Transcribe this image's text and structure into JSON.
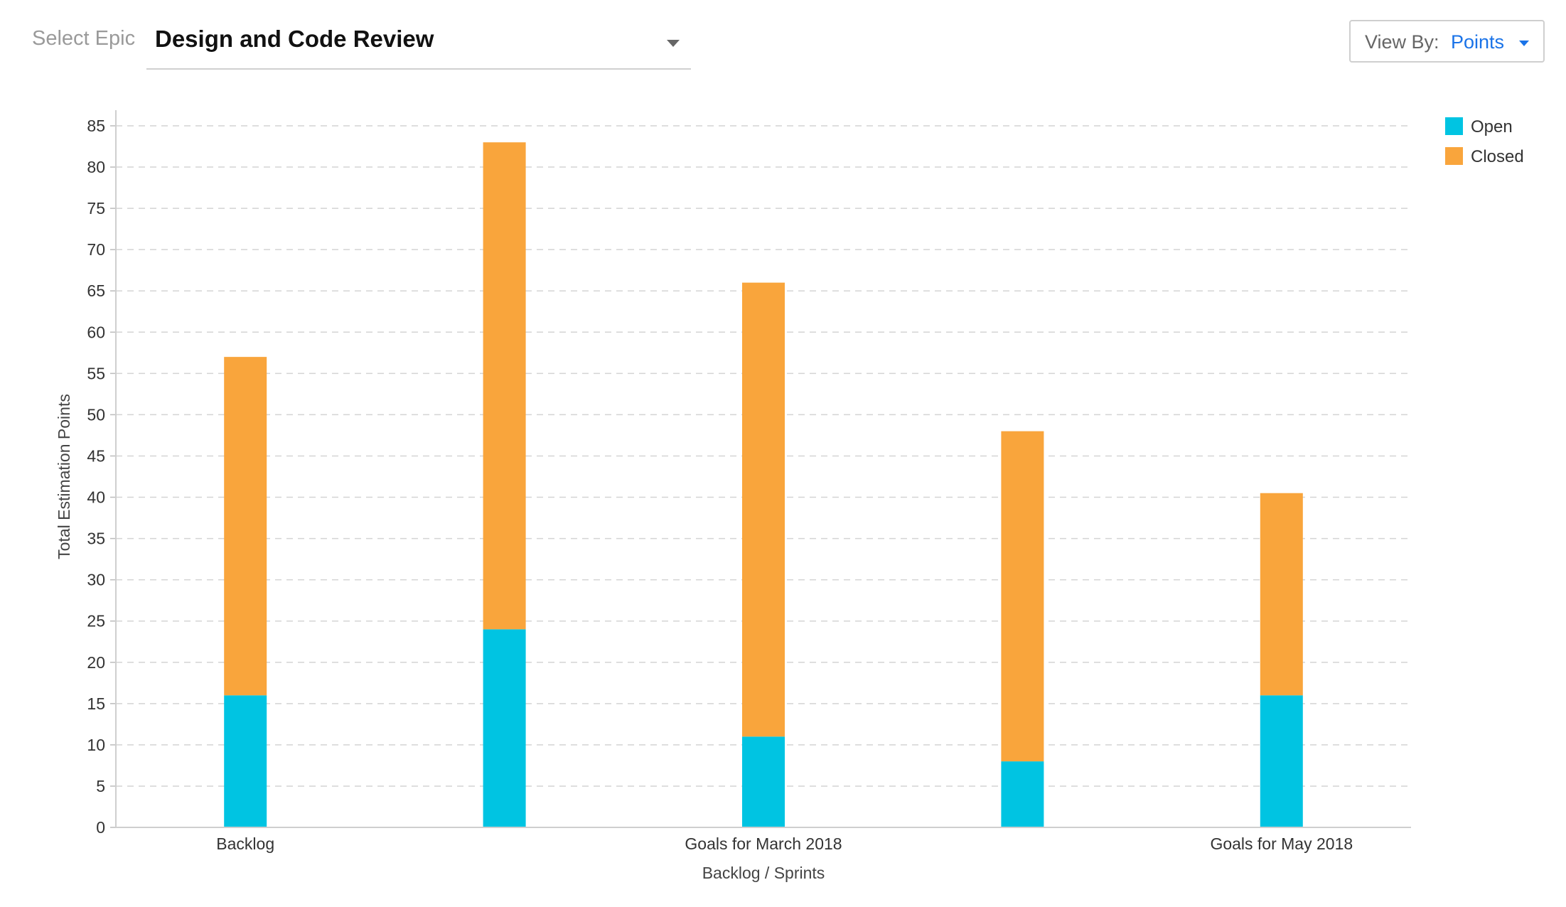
{
  "header": {
    "epic_label": "Select Epic",
    "epic_value": "Design and Code Review",
    "viewby_label": "View By:",
    "viewby_value": "Points"
  },
  "chart_data": {
    "type": "bar",
    "stacked": true,
    "categories": [
      "Backlog",
      "",
      "Goals for March 2018",
      "",
      "Goals for May 2018"
    ],
    "series": [
      {
        "name": "Open",
        "color": "#00c4e2",
        "values": [
          16,
          24,
          11,
          8,
          16
        ]
      },
      {
        "name": "Closed",
        "color": "#f9a53c",
        "values": [
          41,
          59,
          55,
          40,
          24.5
        ]
      }
    ],
    "xlabel": "Backlog / Sprints",
    "ylabel": "Total Estimation Points",
    "ylim": [
      0,
      85
    ],
    "yticks": [
      0,
      5,
      10,
      15,
      20,
      25,
      30,
      35,
      40,
      45,
      50,
      55,
      60,
      65,
      70,
      75,
      80,
      85
    ],
    "grid": true,
    "legend_position": "top-right"
  }
}
